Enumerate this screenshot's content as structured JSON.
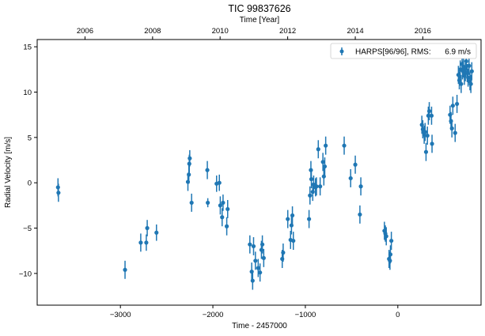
{
  "chart_data": {
    "type": "scatter",
    "title": "TIC 99837626",
    "top_xlabel": "Time [Year]",
    "xlabel": "Time - 2457000",
    "ylabel": "Radial Velocity [m/s]",
    "xlim": [
      -3900,
      900
    ],
    "ylim": [
      -13.5,
      15.8
    ],
    "xticks": [
      -3000,
      -2000,
      -1000,
      0
    ],
    "xticklabels": [
      "−3000",
      "−2000",
      "−1000",
      "0"
    ],
    "yticks": [
      -10,
      -5,
      0,
      5,
      10,
      15
    ],
    "yticklabels": [
      "−10",
      "−5",
      "0",
      "5",
      "10",
      "15"
    ],
    "top_ticks": [
      {
        "label": "2006",
        "x": -3383
      },
      {
        "label": "2008",
        "x": -2652
      },
      {
        "label": "2010",
        "x": -1922
      },
      {
        "label": "2012",
        "x": -1191
      },
      {
        "label": "2014",
        "x": -460
      },
      {
        "label": "2016",
        "x": 270
      }
    ],
    "grid": false,
    "legend_position": "top-right",
    "legend": {
      "label": "HARPS[96/96], RMS:",
      "rms": "6.9 m/s"
    },
    "series": [
      {
        "name": "HARPS[96/96]",
        "color": "#1f77b4",
        "points": [
          {
            "x": -3675,
            "y": -0.5,
            "err": 1.0
          },
          {
            "x": -3670,
            "y": -1.1,
            "err": 1.0
          },
          {
            "x": -2950,
            "y": -9.6,
            "err": 1.0
          },
          {
            "x": -2780,
            "y": -6.6,
            "err": 1.0
          },
          {
            "x": -2720,
            "y": -6.6,
            "err": 0.9
          },
          {
            "x": -2710,
            "y": -5.0,
            "err": 0.9
          },
          {
            "x": -2610,
            "y": -5.5,
            "err": 0.9
          },
          {
            "x": -2270,
            "y": 0.1,
            "err": 1.0
          },
          {
            "x": -2260,
            "y": 0.9,
            "err": 1.0
          },
          {
            "x": -2255,
            "y": 2.1,
            "err": 1.0
          },
          {
            "x": -2250,
            "y": 2.7,
            "err": 0.9
          },
          {
            "x": -2230,
            "y": -2.2,
            "err": 1.0
          },
          {
            "x": -2060,
            "y": 1.4,
            "err": 1.0
          },
          {
            "x": -2055,
            "y": -2.2,
            "err": 0.5
          },
          {
            "x": -1960,
            "y": -0.1,
            "err": 0.9
          },
          {
            "x": -1930,
            "y": 0.0,
            "err": 0.9
          },
          {
            "x": -1920,
            "y": -2.5,
            "err": 1.0
          },
          {
            "x": -1900,
            "y": -3.8,
            "err": 1.0
          },
          {
            "x": -1890,
            "y": -2.2,
            "err": 0.9
          },
          {
            "x": -1850,
            "y": -4.8,
            "err": 1.0
          },
          {
            "x": -1840,
            "y": -2.9,
            "err": 1.0
          },
          {
            "x": -1600,
            "y": -6.8,
            "err": 1.0
          },
          {
            "x": -1580,
            "y": -9.8,
            "err": 1.0
          },
          {
            "x": -1570,
            "y": -10.8,
            "err": 1.0
          },
          {
            "x": -1560,
            "y": -7.0,
            "err": 1.0
          },
          {
            "x": -1540,
            "y": -8.6,
            "err": 1.0
          },
          {
            "x": -1510,
            "y": -9.4,
            "err": 1.0
          },
          {
            "x": -1490,
            "y": -9.9,
            "err": 1.0
          },
          {
            "x": -1475,
            "y": -7.4,
            "err": 1.0
          },
          {
            "x": -1465,
            "y": -6.8,
            "err": 1.0
          },
          {
            "x": -1450,
            "y": -8.3,
            "err": 1.0
          },
          {
            "x": -1250,
            "y": -8.4,
            "err": 1.0
          },
          {
            "x": -1240,
            "y": -7.7,
            "err": 1.0
          },
          {
            "x": -1190,
            "y": -4.0,
            "err": 1.0
          },
          {
            "x": -1160,
            "y": -6.3,
            "err": 1.0
          },
          {
            "x": -1150,
            "y": -4.7,
            "err": 1.0
          },
          {
            "x": -1140,
            "y": -3.6,
            "err": 1.0
          },
          {
            "x": -1130,
            "y": -6.4,
            "err": 1.0
          },
          {
            "x": -960,
            "y": -4.0,
            "err": 1.0
          },
          {
            "x": -950,
            "y": -1.4,
            "err": 1.0
          },
          {
            "x": -940,
            "y": 1.4,
            "err": 1.0
          },
          {
            "x": -935,
            "y": 0.4,
            "err": 1.0
          },
          {
            "x": -920,
            "y": -1.0,
            "err": 1.0
          },
          {
            "x": -910,
            "y": -0.2,
            "err": 1.0
          },
          {
            "x": -890,
            "y": -0.5,
            "err": 1.0
          },
          {
            "x": -880,
            "y": -0.4,
            "err": 1.0
          },
          {
            "x": -860,
            "y": 3.7,
            "err": 1.0
          },
          {
            "x": -840,
            "y": -0.4,
            "err": 1.0
          },
          {
            "x": -810,
            "y": 2.3,
            "err": 1.0
          },
          {
            "x": -800,
            "y": 0.7,
            "err": 1.0
          },
          {
            "x": -790,
            "y": 1.8,
            "err": 1.0
          },
          {
            "x": -780,
            "y": 4.1,
            "err": 1.0
          },
          {
            "x": -580,
            "y": 4.1,
            "err": 1.0
          },
          {
            "x": -510,
            "y": 0.5,
            "err": 1.0
          },
          {
            "x": -460,
            "y": 2.0,
            "err": 1.0
          },
          {
            "x": -410,
            "y": -3.5,
            "err": 1.0
          },
          {
            "x": -400,
            "y": -0.4,
            "err": 1.0
          },
          {
            "x": -145,
            "y": -5.3,
            "err": 1.0
          },
          {
            "x": -135,
            "y": -5.6,
            "err": 0.9
          },
          {
            "x": -125,
            "y": -5.9,
            "err": 1.0
          },
          {
            "x": -95,
            "y": -8.4,
            "err": 1.0
          },
          {
            "x": -85,
            "y": -8.6,
            "err": 1.0
          },
          {
            "x": -80,
            "y": -7.9,
            "err": 1.0
          },
          {
            "x": -70,
            "y": -6.4,
            "err": 1.0
          },
          {
            "x": 260,
            "y": 6.4,
            "err": 1.0
          },
          {
            "x": 270,
            "y": 5.9,
            "err": 1.0
          },
          {
            "x": 285,
            "y": 5.3,
            "err": 1.0
          },
          {
            "x": 295,
            "y": 5.6,
            "err": 1.0
          },
          {
            "x": 305,
            "y": 3.4,
            "err": 1.0
          },
          {
            "x": 320,
            "y": 5.2,
            "err": 1.0
          },
          {
            "x": 330,
            "y": 7.4,
            "err": 1.0
          },
          {
            "x": 340,
            "y": 7.9,
            "err": 1.0
          },
          {
            "x": 365,
            "y": 7.4,
            "err": 1.0
          },
          {
            "x": 370,
            "y": 4.3,
            "err": 1.0
          },
          {
            "x": 565,
            "y": 7.5,
            "err": 1.0
          },
          {
            "x": 575,
            "y": 6.8,
            "err": 1.0
          },
          {
            "x": 585,
            "y": 6.0,
            "err": 1.0
          },
          {
            "x": 595,
            "y": 8.5,
            "err": 1.0
          },
          {
            "x": 620,
            "y": 5.5,
            "err": 1.0
          },
          {
            "x": 640,
            "y": 8.7,
            "err": 1.0
          },
          {
            "x": 655,
            "y": 11.9,
            "err": 1.0
          },
          {
            "x": 665,
            "y": 11.3,
            "err": 1.0
          },
          {
            "x": 675,
            "y": 12.5,
            "err": 1.0
          },
          {
            "x": 685,
            "y": 10.9,
            "err": 1.0
          },
          {
            "x": 695,
            "y": 13.1,
            "err": 1.0
          },
          {
            "x": 700,
            "y": 12.4,
            "err": 1.0
          },
          {
            "x": 710,
            "y": 12.8,
            "err": 1.0
          },
          {
            "x": 720,
            "y": 11.8,
            "err": 1.0
          },
          {
            "x": 730,
            "y": 12.2,
            "err": 1.0
          },
          {
            "x": 740,
            "y": 13.4,
            "err": 1.0
          },
          {
            "x": 750,
            "y": 12.1,
            "err": 1.0
          },
          {
            "x": 760,
            "y": 11.6,
            "err": 1.0
          },
          {
            "x": 770,
            "y": 12.9,
            "err": 1.0
          },
          {
            "x": 780,
            "y": 11.2,
            "err": 1.0
          },
          {
            "x": 790,
            "y": 10.9,
            "err": 1.0
          },
          {
            "x": 800,
            "y": 12.3,
            "err": 1.0
          }
        ]
      }
    ]
  }
}
